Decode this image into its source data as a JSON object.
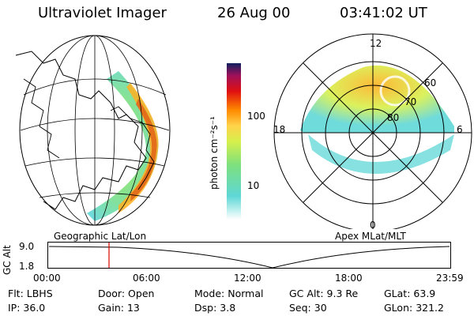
{
  "header": {
    "instrument": "Ultraviolet Imager",
    "date": "26 Aug 00",
    "time": "03:41:02 UT"
  },
  "colorbar": {
    "unit_label": "photon cm⁻²s⁻¹",
    "ticks": [
      "100",
      "10"
    ]
  },
  "maps": {
    "left_caption": "Geographic Lat/Lon",
    "right_caption": "Apex MLat/MLT",
    "mlat_labels": [
      "60",
      "70",
      "80"
    ],
    "mlt_labels": {
      "top": "12",
      "left": "18",
      "right": "6",
      "bottom": "0"
    }
  },
  "altitude_plot": {
    "ylabel": "GC Alt",
    "y_ticks": [
      "9.0",
      "1.8"
    ],
    "x_ticks": [
      "00:00",
      "06:00",
      "12:00",
      "18:00",
      "23:59"
    ],
    "marker_time": "03:41"
  },
  "info": {
    "row1": [
      {
        "label": "Flt:",
        "value": "LBHS"
      },
      {
        "label": "Door:",
        "value": "Open"
      },
      {
        "label": "Mode:",
        "value": "Normal"
      },
      {
        "label": "GC Alt:",
        "value": "9.3 Re"
      },
      {
        "label": "GLat:",
        "value": "63.9"
      }
    ],
    "row2": [
      {
        "label": "IP:",
        "value": "36.0"
      },
      {
        "label": "Gain:",
        "value": "13"
      },
      {
        "label": "Dsp:",
        "value": "3.8"
      },
      {
        "label": "Seq:",
        "value": "30"
      },
      {
        "label": "GLon:",
        "value": "321.2"
      }
    ]
  },
  "colors": {
    "scale": [
      "#ffffff",
      "#5fd7d7",
      "#7de07d",
      "#d7f04b",
      "#ffd24b",
      "#ff8a00",
      "#e01010",
      "#a0105a",
      "#102060"
    ],
    "marker": "#e00000"
  }
}
